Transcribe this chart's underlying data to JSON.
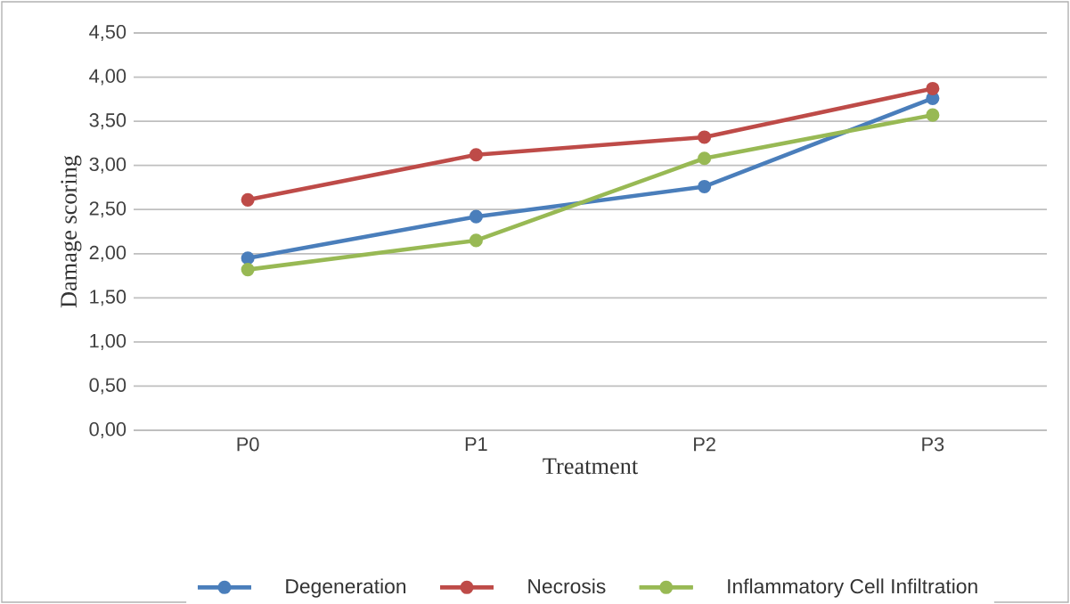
{
  "chart_data": {
    "type": "line",
    "xlabel": "Treatment",
    "ylabel": "Damage scoring",
    "categories": [
      "P0",
      "P1",
      "P2",
      "P3"
    ],
    "series": [
      {
        "name": "Degeneration",
        "color": "#4a7ebb",
        "values": [
          1.95,
          2.42,
          2.76,
          3.76
        ]
      },
      {
        "name": "Necrosis",
        "color": "#be4b48",
        "values": [
          2.61,
          3.12,
          3.32,
          3.87
        ]
      },
      {
        "name": "Inflammatory Cell Infiltration",
        "color": "#98b954",
        "values": [
          1.82,
          2.15,
          3.08,
          3.57
        ]
      }
    ],
    "ylim": [
      0,
      4.5
    ],
    "yticks": [
      {
        "value": 0,
        "label": "0,00"
      },
      {
        "value": 0.5,
        "label": "0,50"
      },
      {
        "value": 1,
        "label": "1,00"
      },
      {
        "value": 1.5,
        "label": "1,50"
      },
      {
        "value": 2,
        "label": "2,00"
      },
      {
        "value": 2.5,
        "label": "2,50"
      },
      {
        "value": 3,
        "label": "3,00"
      },
      {
        "value": 3.5,
        "label": "3,50"
      },
      {
        "value": 4,
        "label": "4,00"
      },
      {
        "value": 4.5,
        "label": "4,50"
      }
    ],
    "grid": "y",
    "legend": "bottom",
    "marker": "circle",
    "line_style": "solid"
  }
}
